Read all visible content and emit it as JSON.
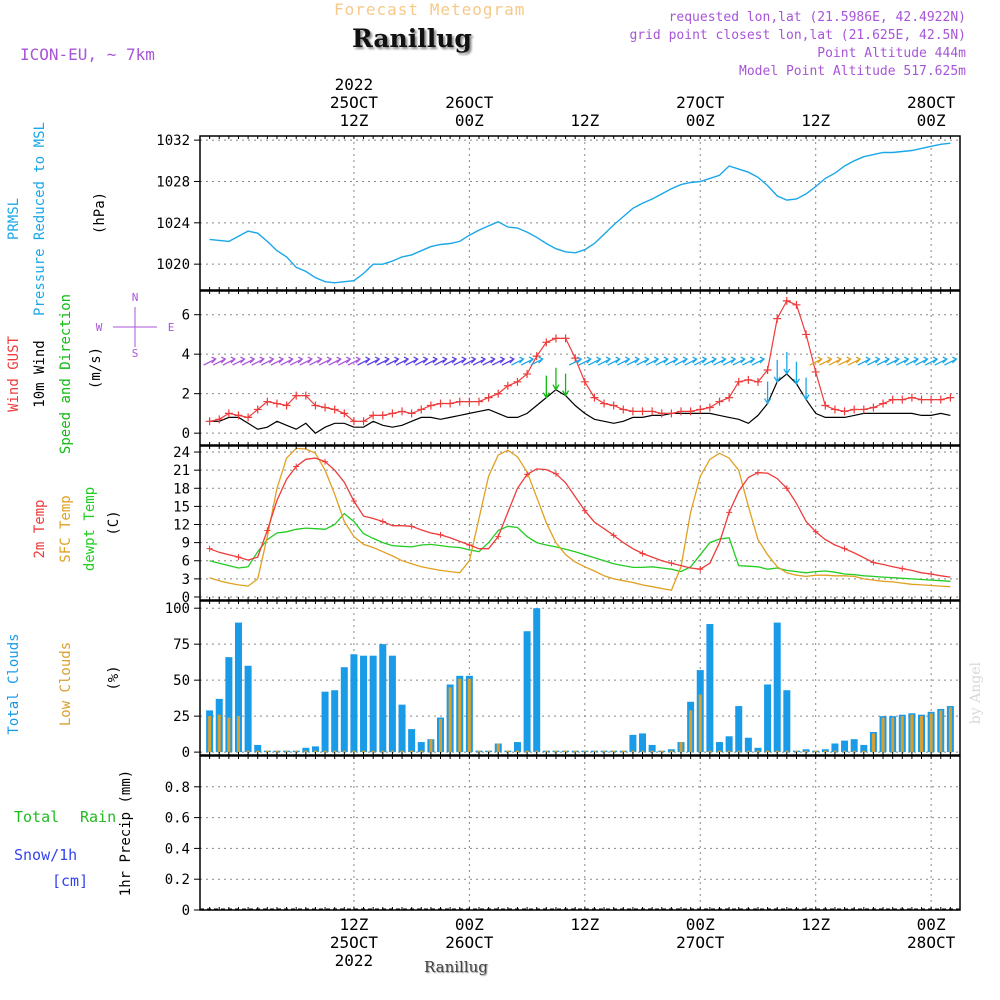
{
  "header": {
    "subtitle": "Forecast Meteogram",
    "location": "Ranillug",
    "model": "ICON-EU, ~ 7km",
    "requested": "requested lon,lat (21.5986E, 42.4922N)",
    "grid_point": "grid point closest lon,lat (21.625E, 42.5N)",
    "point_altitude": "Point Altitude 444m",
    "model_altitude": "Model Point Altitude 517.625m"
  },
  "footer": {
    "location": "Ranillug",
    "credit": "by Angel"
  },
  "colors": {
    "pressure": "#1aa7e8",
    "gust": "#ee3b3b",
    "wind": "#000000",
    "dir_label": "#11bb11",
    "temp": "#ee3b3b",
    "sfc": "#e0a020",
    "dew": "#22cc22",
    "total_clouds": "#1a9be8",
    "low_clouds": "#d8a030",
    "rain": "#22bb22",
    "snow": "#3344ee",
    "purple": "#a855d8",
    "grid": "#888888"
  },
  "chart_data": [
    {
      "type": "line",
      "id": "pressure",
      "label_lines": [
        "PRMSL",
        "Pressure Reduced to MSL"
      ],
      "unit": "(hPa)",
      "ylim": [
        1017.5,
        1032.4
      ],
      "yticks": [
        1020,
        1024,
        1028,
        1032
      ],
      "x_hours_from_25oct_00z": [
        -3,
        -2,
        -1,
        0,
        1,
        2,
        3,
        4,
        5,
        6,
        7,
        8,
        9,
        10,
        11,
        12,
        13,
        14,
        15,
        16,
        17,
        18,
        19,
        20,
        21,
        22,
        23,
        24,
        25,
        26,
        27,
        28,
        29,
        30,
        31,
        32,
        33,
        34,
        35,
        36,
        37,
        38,
        39,
        40,
        41,
        42,
        43,
        44,
        45,
        46,
        47,
        48,
        49,
        50,
        51,
        52,
        53,
        54,
        55,
        56,
        57,
        58,
        59,
        60,
        61,
        62,
        63,
        64,
        65,
        66,
        67,
        68,
        69,
        70,
        71,
        72,
        73,
        74
      ],
      "series": [
        {
          "name": "PRMSL",
          "values": [
            1022.4,
            1022.3,
            1022.2,
            1022.7,
            1023.2,
            1023.0,
            1022.2,
            1021.3,
            1020.7,
            1019.7,
            1019.3,
            1018.7,
            1018.3,
            1018.2,
            1018.3,
            1018.4,
            1019.1,
            1020.0,
            1020.0,
            1020.3,
            1020.7,
            1020.9,
            1021.3,
            1021.7,
            1021.9,
            1022.0,
            1022.2,
            1022.8,
            1023.3,
            1023.7,
            1024.1,
            1023.6,
            1023.5,
            1023.1,
            1022.6,
            1022.0,
            1021.5,
            1021.2,
            1021.1,
            1021.4,
            1022.0,
            1022.9,
            1023.8,
            1024.6,
            1025.4,
            1025.9,
            1026.3,
            1026.8,
            1027.3,
            1027.7,
            1027.9,
            1028.0,
            1028.3,
            1028.6,
            1029.5,
            1029.2,
            1028.9,
            1028.4,
            1027.6,
            1026.6,
            1026.2,
            1026.3,
            1026.8,
            1027.5,
            1028.3,
            1028.8,
            1029.5,
            1030.0,
            1030.4,
            1030.6,
            1030.8,
            1030.8,
            1030.9,
            1031.0,
            1031.2,
            1031.4,
            1031.6,
            1031.7
          ]
        }
      ]
    },
    {
      "type": "line",
      "id": "wind",
      "label_lines": [
        "Wind GUST",
        "10m Wind",
        "Speed and Direction"
      ],
      "unit": "(m/s)",
      "compass": {
        "n": "N",
        "e": "E",
        "s": "S",
        "w": "W"
      },
      "ylim": [
        -0.6,
        7.2
      ],
      "yticks": [
        0,
        2,
        4,
        6
      ],
      "x_hours_from_25oct_00z": [
        -3,
        -2,
        -1,
        0,
        1,
        2,
        3,
        4,
        5,
        6,
        7,
        8,
        9,
        10,
        11,
        12,
        13,
        14,
        15,
        16,
        17,
        18,
        19,
        20,
        21,
        22,
        23,
        24,
        25,
        26,
        27,
        28,
        29,
        30,
        31,
        32,
        33,
        34,
        35,
        36,
        37,
        38,
        39,
        40,
        41,
        42,
        43,
        44,
        45,
        46,
        47,
        48,
        49,
        50,
        51,
        52,
        53,
        54,
        55,
        56,
        57,
        58,
        59,
        60,
        61,
        62,
        63,
        64,
        65,
        66,
        67,
        68,
        69,
        70,
        71,
        72,
        73,
        74
      ],
      "series": [
        {
          "name": "Wind GUST",
          "values": [
            0.6,
            0.7,
            1.0,
            0.9,
            0.8,
            1.2,
            1.6,
            1.5,
            1.4,
            1.9,
            1.9,
            1.4,
            1.3,
            1.2,
            1.0,
            0.6,
            0.6,
            0.9,
            0.9,
            1.0,
            1.1,
            1.0,
            1.2,
            1.4,
            1.5,
            1.5,
            1.6,
            1.6,
            1.6,
            1.8,
            2.0,
            2.4,
            2.6,
            3.0,
            3.9,
            4.6,
            4.8,
            4.8,
            3.8,
            2.6,
            1.8,
            1.5,
            1.4,
            1.2,
            1.1,
            1.1,
            1.1,
            1.0,
            1.0,
            1.1,
            1.1,
            1.2,
            1.3,
            1.6,
            1.8,
            2.6,
            2.7,
            2.6,
            3.2,
            5.8,
            6.7,
            6.5,
            5.0,
            3.1,
            1.4,
            1.2,
            1.1,
            1.2,
            1.2,
            1.3,
            1.5,
            1.7,
            1.7,
            1.8,
            1.7,
            1.7,
            1.7,
            1.8
          ]
        },
        {
          "name": "10m Wind",
          "values": [
            0.6,
            0.6,
            0.8,
            0.8,
            0.5,
            0.2,
            0.3,
            0.6,
            0.4,
            0.2,
            0.5,
            0.0,
            0.3,
            0.5,
            0.5,
            0.3,
            0.3,
            0.6,
            0.4,
            0.3,
            0.4,
            0.6,
            0.8,
            0.8,
            0.7,
            0.8,
            0.9,
            1.0,
            1.1,
            1.2,
            1.0,
            0.8,
            0.8,
            1.0,
            1.4,
            1.8,
            2.2,
            1.9,
            1.4,
            1.0,
            0.7,
            0.6,
            0.5,
            0.6,
            0.8,
            0.8,
            0.9,
            0.9,
            1.0,
            1.0,
            1.0,
            1.0,
            1.0,
            0.9,
            0.8,
            0.7,
            0.5,
            0.9,
            1.5,
            2.6,
            3.0,
            2.5,
            1.7,
            1.0,
            0.8,
            0.8,
            0.8,
            0.9,
            1.0,
            1.0,
            1.0,
            1.0,
            1.0,
            1.0,
            0.9,
            0.9,
            1.0,
            0.9
          ]
        }
      ]
    },
    {
      "type": "line",
      "id": "temperature",
      "label_lines": [
        "2m Temp",
        "SFC Temp",
        "dewpt Temp"
      ],
      "unit": "(C)",
      "ylim": [
        -0.5,
        25
      ],
      "yticks": [
        0,
        3,
        6,
        9,
        12,
        15,
        18,
        21,
        24
      ],
      "x_hours_from_25oct_00z": [
        -3,
        -2,
        -1,
        0,
        1,
        2,
        3,
        4,
        5,
        6,
        7,
        8,
        9,
        10,
        11,
        12,
        13,
        14,
        15,
        16,
        17,
        18,
        19,
        20,
        21,
        22,
        23,
        24,
        25,
        26,
        27,
        28,
        29,
        30,
        31,
        32,
        33,
        34,
        35,
        36,
        37,
        38,
        39,
        40,
        41,
        42,
        43,
        44,
        45,
        46,
        47,
        48,
        49,
        50,
        51,
        52,
        53,
        54,
        55,
        56,
        57,
        58,
        59,
        60,
        61,
        62,
        63,
        64,
        65,
        66,
        67,
        68,
        69,
        70,
        71,
        72,
        73,
        74
      ],
      "series": [
        {
          "name": "2m Temp",
          "values": [
            8.0,
            7.4,
            7.0,
            6.6,
            6.1,
            6.6,
            11.0,
            16.0,
            19.5,
            21.6,
            22.8,
            23.0,
            22.4,
            21.0,
            19.0,
            15.9,
            13.4,
            13.0,
            12.5,
            11.8,
            11.8,
            11.7,
            11.1,
            10.6,
            10.3,
            9.8,
            9.2,
            8.6,
            8.0,
            8.0,
            10.0,
            14.0,
            18.0,
            20.3,
            21.2,
            21.1,
            20.4,
            18.9,
            16.6,
            14.3,
            12.4,
            11.3,
            10.2,
            9.0,
            8.0,
            7.2,
            6.6,
            6.0,
            5.6,
            5.2,
            4.8,
            4.6,
            5.6,
            9.0,
            14.0,
            17.5,
            19.8,
            20.6,
            20.5,
            19.6,
            18.0,
            15.5,
            12.5,
            10.8,
            9.5,
            8.6,
            8.0,
            7.3,
            6.5,
            5.7,
            5.4,
            5.0,
            4.7,
            4.4,
            4.0,
            3.8,
            3.5,
            3.3
          ]
        },
        {
          "name": "SFC Temp",
          "values": [
            3.2,
            2.7,
            2.3,
            2.0,
            1.8,
            3.0,
            10.0,
            18.0,
            23.0,
            24.6,
            24.5,
            23.8,
            21.0,
            17.0,
            12.5,
            10.0,
            8.7,
            8.2,
            7.5,
            6.8,
            6.0,
            5.5,
            5.0,
            4.7,
            4.4,
            4.2,
            4.0,
            6.0,
            13.0,
            20.0,
            23.5,
            24.3,
            23.2,
            20.7,
            16.5,
            12.3,
            9.0,
            7.0,
            5.8,
            5.0,
            4.3,
            3.5,
            3.0,
            2.7,
            2.4,
            2.0,
            1.7,
            1.4,
            1.1,
            5.0,
            14.0,
            20.0,
            22.8,
            23.8,
            23.0,
            21.0,
            15.0,
            9.5,
            7.0,
            5.0,
            4.0,
            3.6,
            3.4,
            3.6,
            3.6,
            3.5,
            3.5,
            3.4,
            3.0,
            2.8,
            2.6,
            2.5,
            2.3,
            2.1,
            2.0,
            1.9,
            1.8,
            1.7
          ]
        },
        {
          "name": "dewpt Temp",
          "values": [
            6.0,
            5.6,
            5.2,
            4.8,
            5.0,
            7.5,
            9.5,
            10.6,
            10.8,
            11.2,
            11.4,
            11.3,
            11.2,
            12.0,
            13.8,
            12.5,
            10.5,
            9.7,
            9.0,
            8.5,
            8.4,
            8.3,
            8.6,
            8.7,
            8.5,
            8.3,
            8.2,
            7.8,
            7.5,
            9.0,
            11.0,
            11.7,
            11.5,
            10.0,
            9.0,
            8.6,
            8.3,
            7.9,
            7.5,
            7.0,
            6.5,
            6.0,
            5.5,
            5.2,
            4.9,
            4.9,
            5.0,
            4.8,
            4.6,
            4.2,
            5.0,
            7.0,
            9.0,
            9.6,
            9.8,
            5.2,
            5.1,
            5.0,
            4.6,
            4.8,
            4.4,
            4.2,
            4.0,
            4.2,
            4.3,
            4.1,
            3.8,
            3.7,
            3.5,
            3.4,
            3.3,
            3.2,
            3.1,
            3.0,
            2.9,
            2.8,
            2.7,
            2.6
          ]
        }
      ]
    },
    {
      "type": "bar",
      "id": "clouds",
      "label_lines": [
        "Total Clouds",
        "Low Clouds"
      ],
      "unit": "(%)",
      "ylim": [
        -2,
        105
      ],
      "yticks": [
        0,
        25,
        50,
        75,
        100
      ],
      "x_hours_from_25oct_00z": [
        -3,
        -2,
        -1,
        0,
        1,
        2,
        3,
        4,
        5,
        6,
        7,
        8,
        9,
        10,
        11,
        12,
        13,
        14,
        15,
        16,
        17,
        18,
        19,
        20,
        21,
        22,
        23,
        24,
        25,
        26,
        27,
        28,
        29,
        30,
        31,
        32,
        33,
        34,
        35,
        36,
        37,
        38,
        39,
        40,
        41,
        42,
        43,
        44,
        45,
        46,
        47,
        48,
        49,
        50,
        51,
        52,
        53,
        54,
        55,
        56,
        57,
        58,
        59,
        60,
        61,
        62,
        63,
        64,
        65,
        66,
        67,
        68,
        69,
        70,
        71,
        72,
        73,
        74
      ],
      "series": [
        {
          "name": "Total Clouds",
          "values": [
            29,
            37,
            66,
            90,
            60,
            5,
            1,
            1,
            1,
            1,
            3,
            4,
            42,
            43,
            59,
            68,
            67,
            67,
            75,
            67,
            33,
            16,
            7,
            9,
            24,
            47,
            53,
            53,
            1,
            1,
            6,
            1,
            7,
            84,
            100,
            1,
            1,
            1,
            1,
            1,
            1,
            1,
            1,
            1,
            12,
            13,
            5,
            1,
            2,
            7,
            35,
            57,
            89,
            7,
            11,
            32,
            10,
            3,
            47,
            90,
            43,
            1,
            2,
            1,
            2,
            6,
            8,
            9,
            5,
            14,
            25,
            25,
            26,
            27,
            26,
            28,
            30,
            32
          ]
        },
        {
          "name": "Low Clouds",
          "values": [
            25,
            26,
            24,
            25,
            1,
            1,
            1,
            1,
            1,
            1,
            1,
            1,
            1,
            1,
            1,
            1,
            1,
            1,
            1,
            1,
            1,
            1,
            1,
            9,
            23,
            45,
            51,
            51,
            1,
            1,
            6,
            1,
            1,
            1,
            1,
            1,
            1,
            1,
            1,
            1,
            1,
            1,
            1,
            1,
            1,
            1,
            1,
            1,
            1,
            7,
            29,
            40,
            1,
            1,
            1,
            1,
            1,
            1,
            1,
            1,
            1,
            1,
            1,
            1,
            1,
            1,
            1,
            1,
            1,
            13,
            24,
            24,
            25,
            26,
            25,
            27,
            29,
            31
          ]
        }
      ]
    },
    {
      "type": "bar",
      "id": "precip",
      "label_lines": [
        "Total Rain",
        "Snow/1h",
        "[cm]"
      ],
      "unit": "1hr Precip (mm)",
      "ylim": [
        0,
        1.0
      ],
      "yticks": [
        0,
        0.2,
        0.4,
        0.6,
        0.8
      ],
      "ytick_labels": [
        "0",
        "0.2",
        "0.4",
        "0.6",
        "0.8"
      ],
      "series": [
        {
          "name": "Total Rain",
          "values": []
        },
        {
          "name": "Snow/1h",
          "values": []
        }
      ]
    }
  ],
  "time_axis": {
    "top": [
      {
        "h": 12,
        "lines": [
          "2022",
          "25OCT",
          "12Z"
        ]
      },
      {
        "h": 24,
        "lines": [
          "26OCT",
          "00Z"
        ]
      },
      {
        "h": 36,
        "lines": [
          "12Z"
        ]
      },
      {
        "h": 48,
        "lines": [
          "27OCT",
          "00Z"
        ]
      },
      {
        "h": 60,
        "lines": [
          "12Z"
        ]
      },
      {
        "h": 72,
        "lines": [
          "28OCT",
          "00Z"
        ]
      }
    ],
    "bottom": [
      {
        "h": 12,
        "lines": [
          "12Z",
          "25OCT",
          "2022"
        ]
      },
      {
        "h": 24,
        "lines": [
          "00Z",
          "26OCT"
        ]
      },
      {
        "h": 36,
        "lines": [
          "12Z"
        ]
      },
      {
        "h": 48,
        "lines": [
          "00Z",
          "27OCT"
        ]
      },
      {
        "h": 60,
        "lines": [
          "12Z"
        ]
      },
      {
        "h": 72,
        "lines": [
          "00Z",
          "28OCT"
        ]
      }
    ]
  }
}
